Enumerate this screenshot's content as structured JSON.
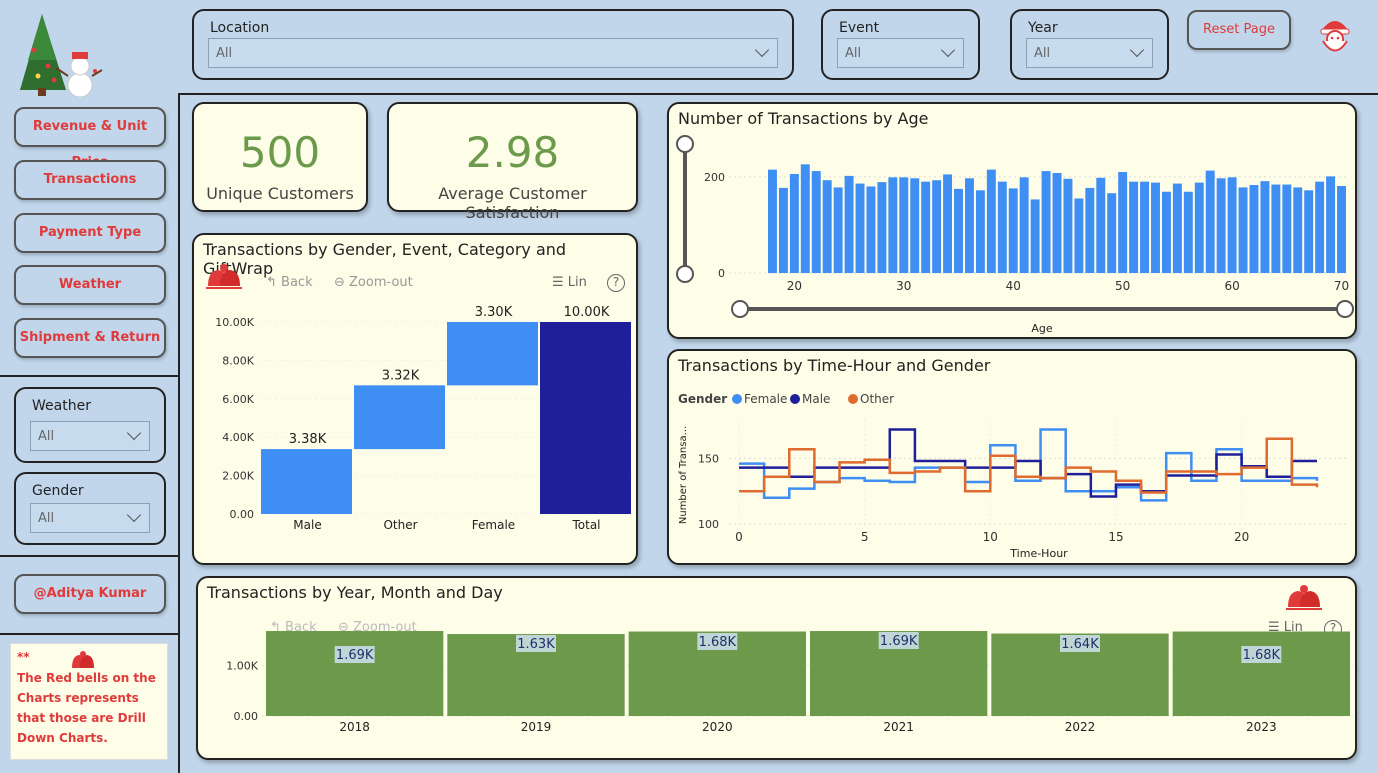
{
  "filters": {
    "location": {
      "label": "Location",
      "value": "All"
    },
    "event": {
      "label": "Event",
      "value": "All"
    },
    "year": {
      "label": "Year",
      "value": "All"
    },
    "weather": {
      "label": "Weather",
      "value": "All"
    },
    "gender": {
      "label": "Gender",
      "value": "All"
    }
  },
  "reset_label": "Reset Page",
  "nav": [
    "Revenue & Unit Price",
    "Transactions",
    "Payment Type",
    "Weather",
    "Shipment & Return"
  ],
  "author": "@Aditya Kumar",
  "note": {
    "stars": "**",
    "text": "The Red bells on the Charts represents that those are Drill Down Charts."
  },
  "kpis": [
    {
      "value": "500",
      "label": "Unique Customers"
    },
    {
      "value": "2.98",
      "label": "Average Customer Satisfaction"
    }
  ],
  "toolbar": {
    "back": "Back",
    "zoom": "Zoom-out",
    "lin": "Lin",
    "help": "?"
  },
  "colors": {
    "accent": "#e03a3a",
    "bar_blue": "#3f8ef3",
    "navy": "#1f1f9a",
    "green": "#6c9a4a",
    "orange": "#e06b2e"
  },
  "chart_data": [
    {
      "type": "bar",
      "title": "Transactions by Gender, Event, Category and GiftWrap",
      "subtype": "waterfall",
      "categories": [
        "Male",
        "Other",
        "Female",
        "Total"
      ],
      "values": [
        3380,
        3320,
        3300,
        10000
      ],
      "data_labels": [
        "3.38K",
        "3.32K",
        "3.30K",
        "10.00K"
      ],
      "yticks": [
        "0.00",
        "2.00K",
        "4.00K",
        "6.00K",
        "8.00K",
        "10.00K"
      ],
      "ylim": [
        0,
        10000
      ]
    },
    {
      "type": "bar",
      "title": "Number of Transactions by Age",
      "xlabel": "Age",
      "x": [
        18,
        19,
        20,
        21,
        22,
        23,
        24,
        25,
        26,
        27,
        28,
        29,
        30,
        31,
        32,
        33,
        34,
        35,
        36,
        37,
        38,
        39,
        40,
        41,
        42,
        43,
        44,
        45,
        46,
        47,
        48,
        49,
        50,
        51,
        52,
        53,
        54,
        55,
        56,
        57,
        58,
        59,
        60,
        61,
        62,
        63,
        64,
        65,
        66,
        67,
        68,
        69,
        70
      ],
      "values": [
        215,
        177,
        206,
        226,
        212,
        193,
        178,
        202,
        186,
        180,
        189,
        199,
        199,
        197,
        190,
        193,
        205,
        175,
        197,
        172,
        215,
        190,
        176,
        199,
        153,
        212,
        208,
        196,
        155,
        177,
        198,
        166,
        210,
        190,
        190,
        188,
        169,
        186,
        169,
        188,
        213,
        197,
        199,
        178,
        183,
        191,
        184,
        184,
        178,
        172,
        190,
        201,
        181
      ],
      "xticks": [
        "20",
        "30",
        "40",
        "50",
        "60",
        "70"
      ],
      "yticks": [
        "0",
        "200"
      ],
      "ylim": [
        0,
        260
      ]
    },
    {
      "type": "line",
      "title": "Transactions by Time-Hour and Gender",
      "xlabel": "Time-Hour",
      "ylabel": "Number of Transa...",
      "legend_title": "Gender",
      "x": [
        0,
        1,
        2,
        3,
        4,
        5,
        6,
        7,
        8,
        9,
        10,
        11,
        12,
        13,
        14,
        15,
        16,
        17,
        18,
        19,
        20,
        21,
        22,
        23
      ],
      "series": [
        {
          "name": "Female",
          "values": [
            146,
            120,
            127,
            132,
            135,
            133,
            132,
            143,
            143,
            132,
            160,
            133,
            172,
            125,
            125,
            128,
            118,
            154,
            133,
            157,
            133,
            133,
            135,
            133
          ]
        },
        {
          "name": "Male",
          "values": [
            143,
            143,
            136,
            143,
            143,
            143,
            172,
            148,
            148,
            143,
            143,
            148,
            135,
            138,
            121,
            130,
            125,
            137,
            137,
            153,
            144,
            136,
            148,
            148
          ]
        },
        {
          "name": "Other",
          "values": [
            125,
            136,
            157,
            132,
            147,
            149,
            139,
            140,
            143,
            125,
            152,
            136,
            135,
            143,
            140,
            133,
            124,
            140,
            140,
            138,
            143,
            165,
            130,
            128
          ]
        }
      ],
      "xticks": [
        "0",
        "5",
        "10",
        "15",
        "20"
      ],
      "yticks": [
        "100",
        "150"
      ],
      "ylim": [
        100,
        180
      ]
    },
    {
      "type": "bar",
      "title": "Transactions by Year, Month and Day",
      "categories": [
        "2018",
        "2019",
        "2020",
        "2021",
        "2022",
        "2023"
      ],
      "values": [
        1690,
        1630,
        1680,
        1690,
        1640,
        1680
      ],
      "data_labels": [
        "1.69K",
        "1.63K",
        "1.68K",
        "1.69K",
        "1.64K",
        "1.68K"
      ],
      "yticks": [
        "0.00",
        "1.00K"
      ],
      "ylim": [
        0,
        1750
      ]
    }
  ]
}
